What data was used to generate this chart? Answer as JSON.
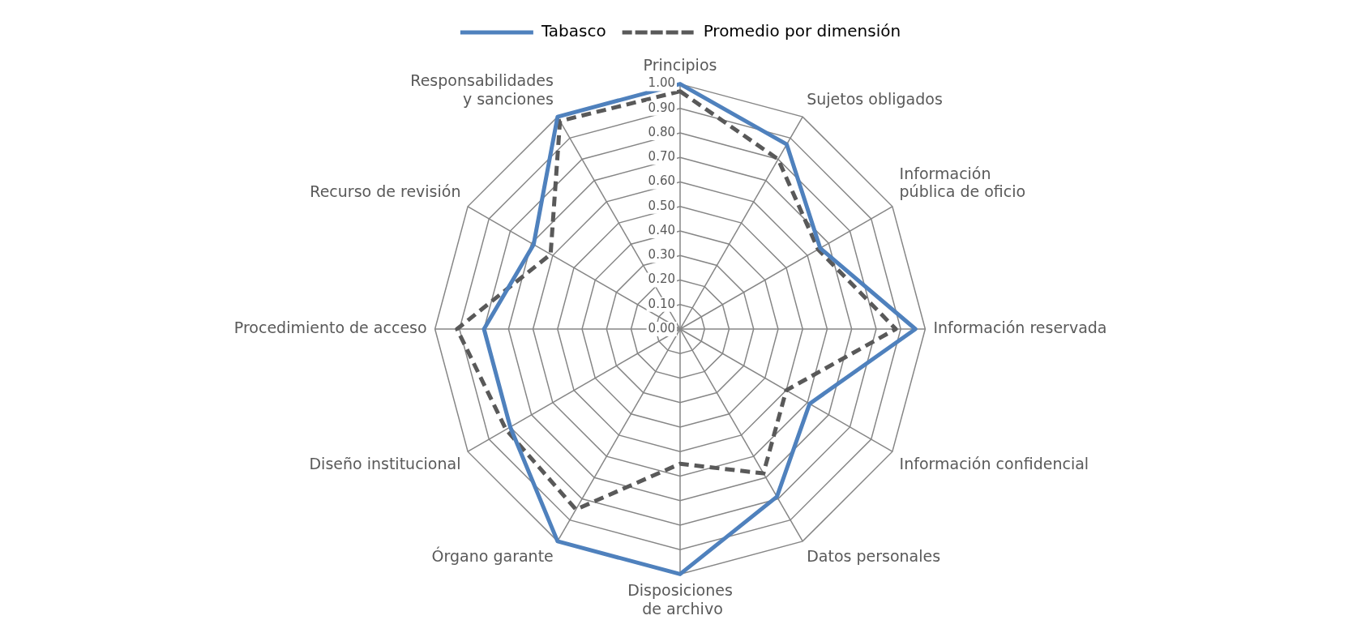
{
  "chart_data": {
    "type": "radar",
    "categories": [
      "Principios",
      "Sujetos obligados",
      "Información pública de oficio",
      "Información reservada",
      "Información confidencial",
      "Datos personales",
      "Disposiciones  de archivo",
      "Órgano garante",
      "Diseño institucional",
      "Procedimiento de acceso",
      "Recurso de revisión",
      "Responsabilidades y sanciones"
    ],
    "series": [
      {
        "name": "Tabasco",
        "color": "#4f81bd",
        "line_style": "solid",
        "values": [
          1.0,
          0.87,
          0.66,
          0.96,
          0.61,
          0.79,
          1.0,
          1.0,
          0.8,
          0.8,
          0.69,
          1.0
        ]
      },
      {
        "name": "Promedio por dimensión",
        "color": "#595959",
        "line_style": "dashed",
        "values": [
          0.97,
          0.8,
          0.65,
          0.88,
          0.5,
          0.68,
          0.55,
          0.85,
          0.82,
          0.91,
          0.61,
          0.98
        ]
      }
    ],
    "ylim": [
      0,
      1
    ],
    "yticks": [
      {
        "value": 0,
        "label": "0.00"
      },
      {
        "value": 0.1,
        "label": "0.10"
      },
      {
        "value": 0.2,
        "label": "0.20"
      },
      {
        "value": 0.3,
        "label": "0.30"
      },
      {
        "value": 0.4,
        "label": "0.40"
      },
      {
        "value": 0.5,
        "label": "0.50"
      },
      {
        "value": 0.6,
        "label": "0.60"
      },
      {
        "value": 0.7,
        "label": "0.70"
      },
      {
        "value": 0.8,
        "label": "0.80"
      },
      {
        "value": 0.9,
        "label": "0.90"
      },
      {
        "value": 1,
        "label": "1.00"
      }
    ],
    "grid": true,
    "legend": "top",
    "marker": "none"
  }
}
